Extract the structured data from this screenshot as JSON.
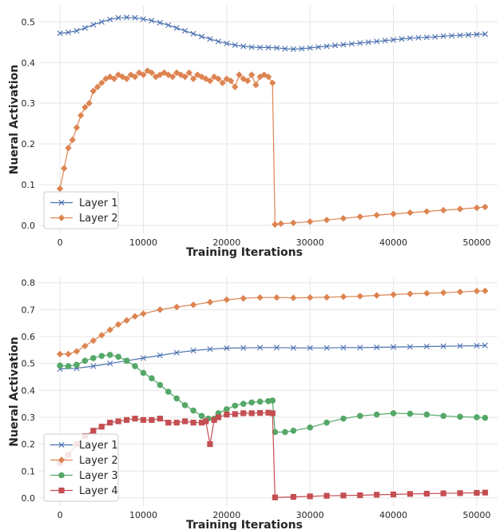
{
  "colors": {
    "layer1": "#4c72b0",
    "layer2": "#dd8452",
    "layer3": "#55a868",
    "layer4": "#c44e52",
    "grid": "#e5e5e5",
    "axes_bg": "#ffffff"
  },
  "chart_data": [
    {
      "type": "line",
      "xlabel": "Training Iterations",
      "ylabel": "Nueral Activation",
      "xlim": [
        -2500,
        52500
      ],
      "ylim": [
        -0.02,
        0.54
      ],
      "xticks": [
        0,
        10000,
        20000,
        30000,
        40000,
        50000
      ],
      "yticks": [
        0.0,
        0.1,
        0.2,
        0.3,
        0.4,
        0.5
      ],
      "ytick_decimals": 1,
      "grid": true,
      "legend_position": "lower-left",
      "series": [
        {
          "name": "Layer 1",
          "marker": "x",
          "color_key": "layer1",
          "x": [
            0,
            1000,
            2000,
            3000,
            4000,
            5000,
            6000,
            7000,
            8000,
            9000,
            10000,
            11000,
            12000,
            13000,
            14000,
            15000,
            16000,
            17000,
            18000,
            19000,
            20000,
            21000,
            22000,
            23000,
            24000,
            25000,
            26000,
            27000,
            28000,
            29000,
            30000,
            31000,
            32000,
            33000,
            34000,
            35000,
            36000,
            37000,
            38000,
            39000,
            40000,
            41000,
            42000,
            43000,
            44000,
            45000,
            46000,
            47000,
            48000,
            49000,
            50000,
            51000
          ],
          "y": [
            0.472,
            0.474,
            0.478,
            0.485,
            0.493,
            0.5,
            0.506,
            0.51,
            0.511,
            0.51,
            0.507,
            0.503,
            0.498,
            0.492,
            0.485,
            0.478,
            0.471,
            0.464,
            0.458,
            0.452,
            0.447,
            0.443,
            0.44,
            0.438,
            0.437,
            0.437,
            0.436,
            0.434,
            0.433,
            0.434,
            0.436,
            0.438,
            0.44,
            0.442,
            0.444,
            0.446,
            0.448,
            0.45,
            0.452,
            0.454,
            0.456,
            0.458,
            0.46,
            0.461,
            0.462,
            0.463,
            0.465,
            0.466,
            0.467,
            0.468,
            0.469,
            0.47
          ]
        },
        {
          "name": "Layer 2",
          "marker": "diamond",
          "color_key": "layer2",
          "x": [
            0,
            500,
            1000,
            1500,
            2000,
            2500,
            3000,
            3500,
            4000,
            4500,
            5000,
            5500,
            6000,
            6500,
            7000,
            7500,
            8000,
            8500,
            9000,
            9500,
            10000,
            10500,
            11000,
            11500,
            12000,
            12500,
            13000,
            13500,
            14000,
            14500,
            15000,
            15500,
            16000,
            16500,
            17000,
            17500,
            18000,
            18500,
            19000,
            19500,
            20000,
            20500,
            21000,
            21500,
            22000,
            22500,
            23000,
            23500,
            24000,
            24500,
            25000,
            25500,
            25800,
            26500,
            28000,
            30000,
            32000,
            34000,
            36000,
            38000,
            40000,
            42000,
            44000,
            46000,
            48000,
            50000,
            51000
          ],
          "y": [
            0.09,
            0.14,
            0.19,
            0.21,
            0.24,
            0.27,
            0.29,
            0.3,
            0.33,
            0.34,
            0.35,
            0.36,
            0.365,
            0.36,
            0.37,
            0.365,
            0.36,
            0.37,
            0.365,
            0.375,
            0.37,
            0.38,
            0.375,
            0.365,
            0.37,
            0.375,
            0.37,
            0.365,
            0.375,
            0.37,
            0.365,
            0.375,
            0.36,
            0.37,
            0.365,
            0.36,
            0.355,
            0.365,
            0.36,
            0.35,
            0.36,
            0.355,
            0.34,
            0.37,
            0.36,
            0.355,
            0.37,
            0.345,
            0.365,
            0.37,
            0.365,
            0.35,
            0.002,
            0.004,
            0.006,
            0.009,
            0.013,
            0.017,
            0.021,
            0.025,
            0.028,
            0.031,
            0.034,
            0.037,
            0.04,
            0.043,
            0.045
          ]
        }
      ]
    },
    {
      "type": "line",
      "xlabel": "Training Iterations",
      "ylabel": "Nueral Activation",
      "xlim": [
        -2500,
        52500
      ],
      "ylim": [
        -0.03,
        0.82
      ],
      "xticks": [
        0,
        10000,
        20000,
        30000,
        40000,
        50000
      ],
      "yticks": [
        0.0,
        0.1,
        0.2,
        0.3,
        0.4,
        0.5,
        0.6,
        0.7,
        0.8
      ],
      "ytick_decimals": 1,
      "grid": true,
      "legend_position": "lower-left",
      "series": [
        {
          "name": "Layer 1",
          "marker": "x",
          "color_key": "layer1",
          "x": [
            0,
            2000,
            4000,
            6000,
            8000,
            10000,
            12000,
            14000,
            16000,
            18000,
            20000,
            22000,
            24000,
            26000,
            28000,
            30000,
            32000,
            34000,
            36000,
            38000,
            40000,
            42000,
            44000,
            46000,
            48000,
            50000,
            51000
          ],
          "y": [
            0.48,
            0.482,
            0.49,
            0.5,
            0.51,
            0.52,
            0.53,
            0.54,
            0.548,
            0.553,
            0.557,
            0.558,
            0.559,
            0.559,
            0.558,
            0.558,
            0.558,
            0.559,
            0.559,
            0.56,
            0.561,
            0.562,
            0.563,
            0.564,
            0.565,
            0.566,
            0.567
          ]
        },
        {
          "name": "Layer 2",
          "marker": "diamond",
          "color_key": "layer2",
          "x": [
            0,
            1000,
            2000,
            3000,
            4000,
            5000,
            6000,
            7000,
            8000,
            9000,
            10000,
            12000,
            14000,
            16000,
            18000,
            20000,
            22000,
            24000,
            26000,
            28000,
            30000,
            32000,
            34000,
            36000,
            38000,
            40000,
            42000,
            44000,
            46000,
            48000,
            50000,
            51000
          ],
          "y": [
            0.535,
            0.535,
            0.545,
            0.565,
            0.585,
            0.605,
            0.625,
            0.645,
            0.66,
            0.675,
            0.685,
            0.7,
            0.71,
            0.718,
            0.728,
            0.737,
            0.742,
            0.745,
            0.745,
            0.744,
            0.745,
            0.746,
            0.748,
            0.75,
            0.753,
            0.756,
            0.759,
            0.761,
            0.763,
            0.766,
            0.769,
            0.77
          ]
        },
        {
          "name": "Layer 3",
          "marker": "circle",
          "color_key": "layer3",
          "x": [
            0,
            1000,
            2000,
            3000,
            4000,
            5000,
            6000,
            7000,
            8000,
            9000,
            10000,
            11000,
            12000,
            13000,
            14000,
            15000,
            16000,
            17000,
            17800,
            18500,
            19000,
            20000,
            21000,
            22000,
            23000,
            24000,
            25000,
            25500,
            25800,
            27000,
            28000,
            30000,
            32000,
            34000,
            36000,
            38000,
            40000,
            42000,
            44000,
            46000,
            48000,
            50000,
            51000
          ],
          "y": [
            0.492,
            0.49,
            0.495,
            0.51,
            0.52,
            0.528,
            0.532,
            0.525,
            0.51,
            0.49,
            0.465,
            0.445,
            0.42,
            0.395,
            0.37,
            0.345,
            0.325,
            0.305,
            0.295,
            0.295,
            0.315,
            0.33,
            0.343,
            0.35,
            0.355,
            0.358,
            0.36,
            0.362,
            0.245,
            0.245,
            0.25,
            0.262,
            0.28,
            0.295,
            0.305,
            0.31,
            0.315,
            0.313,
            0.31,
            0.305,
            0.302,
            0.3,
            0.298
          ]
        },
        {
          "name": "Layer 4",
          "marker": "square",
          "color_key": "layer4",
          "x": [
            0,
            1000,
            2000,
            3000,
            4000,
            5000,
            6000,
            7000,
            8000,
            9000,
            10000,
            11000,
            12000,
            13000,
            14000,
            15000,
            16000,
            17000,
            17500,
            18000,
            18500,
            19000,
            20000,
            21000,
            22000,
            23000,
            24000,
            25000,
            25500,
            25800,
            28000,
            30000,
            32000,
            34000,
            36000,
            38000,
            40000,
            42000,
            44000,
            46000,
            48000,
            50000,
            51000
          ],
          "y": [
            0.13,
            0.16,
            0.2,
            0.23,
            0.25,
            0.265,
            0.28,
            0.285,
            0.29,
            0.295,
            0.29,
            0.29,
            0.295,
            0.28,
            0.28,
            0.285,
            0.28,
            0.28,
            0.285,
            0.2,
            0.29,
            0.3,
            0.31,
            0.312,
            0.315,
            0.315,
            0.316,
            0.317,
            0.315,
            0.002,
            0.004,
            0.006,
            0.008,
            0.009,
            0.01,
            0.012,
            0.013,
            0.015,
            0.016,
            0.017,
            0.018,
            0.019,
            0.02
          ]
        }
      ]
    }
  ]
}
